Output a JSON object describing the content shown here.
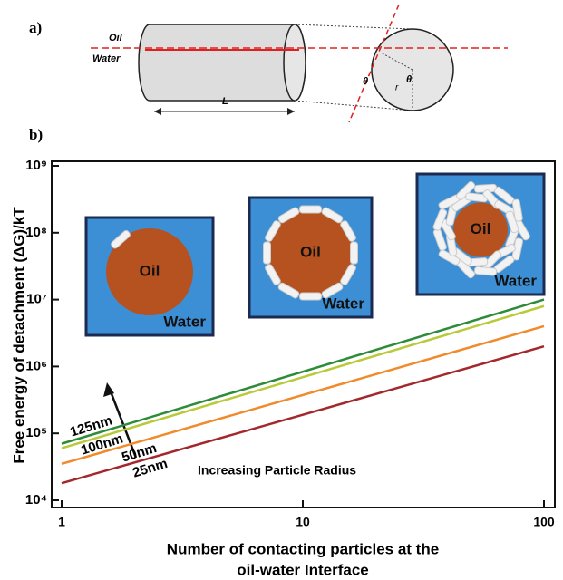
{
  "figure": {
    "panel_a": "a)",
    "panel_b": "b)",
    "oil": "Oil",
    "water": "Water",
    "length": "L",
    "angles": [
      "θ",
      "θ"
    ],
    "radius": "r"
  },
  "chart_data": {
    "type": "line",
    "x_label": [
      "Number of contacting particles at the",
      "oil-water Interface"
    ],
    "y_label": "Free energy of detachment (ΔG)/kT",
    "x": [
      1,
      100
    ],
    "series": [
      {
        "name": "125nm",
        "color": "#2e8b3a",
        "values": [
          70000,
          10000000
        ]
      },
      {
        "name": "100nm",
        "color": "#b8c93a",
        "values": [
          60000,
          8000000
        ]
      },
      {
        "name": "50nm",
        "color": "#f08a2a",
        "values": [
          35000,
          4000000
        ]
      },
      {
        "name": "25nm",
        "color": "#a3282c",
        "values": [
          18000,
          2000000
        ]
      }
    ],
    "xlim": [
      1,
      100
    ],
    "ylim": [
      10000,
      1000000000
    ],
    "log_x": true,
    "log_y": true,
    "xticks": [
      1,
      10,
      100
    ],
    "yticks": [
      {
        "value": 10000,
        "label": "10⁴"
      },
      {
        "value": 100000,
        "label": "10⁵"
      },
      {
        "value": 1000000,
        "label": "10⁶"
      },
      {
        "value": 10000000,
        "label": "10⁷"
      },
      {
        "value": 100000000,
        "label": "10⁸"
      },
      {
        "value": 1000000000,
        "label": "10⁹"
      }
    ],
    "annotations": [
      "Increasing Particle Radius"
    ],
    "insets": [
      {
        "core": "Oil",
        "medium": "Water"
      },
      {
        "core": "Oil",
        "medium": "Water"
      },
      {
        "core": "Oil",
        "medium": "Water"
      }
    ]
  }
}
